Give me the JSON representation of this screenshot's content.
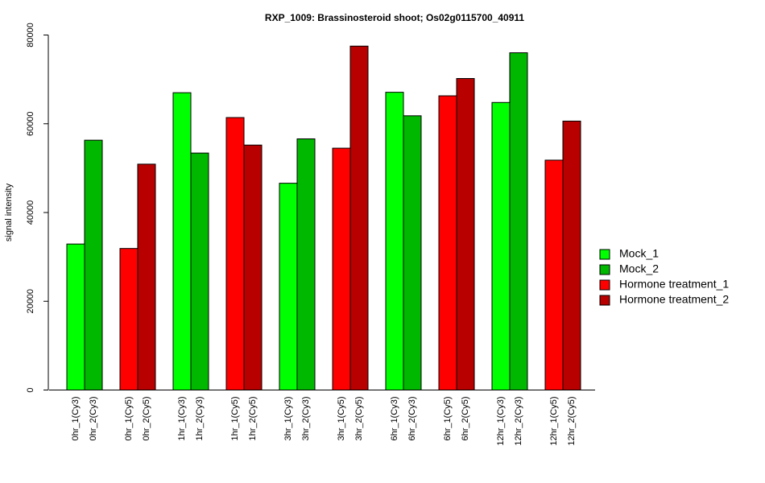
{
  "chart_data": {
    "type": "bar",
    "title": "RXP_1009: Brassinosteroid shoot; Os02g0115700_40911",
    "xlabel": "",
    "ylabel": "signal intensity",
    "ylim": [
      0,
      80000
    ],
    "yticks": [
      0,
      20000,
      40000,
      60000,
      80000
    ],
    "grid": false,
    "legend_position": "right",
    "groups": [
      {
        "bars": [
          {
            "label": "0hr_1(Cy3)",
            "value": 32900,
            "series": 0
          },
          {
            "label": "0hr_2(Cy3)",
            "value": 56300,
            "series": 1
          }
        ]
      },
      {
        "bars": [
          {
            "label": "0hr_1(Cy5)",
            "value": 31900,
            "series": 2
          },
          {
            "label": "0hr_2(Cy5)",
            "value": 50900,
            "series": 3
          }
        ]
      },
      {
        "bars": [
          {
            "label": "1hr_1(Cy3)",
            "value": 67000,
            "series": 0
          },
          {
            "label": "1hr_2(Cy3)",
            "value": 53400,
            "series": 1
          }
        ]
      },
      {
        "bars": [
          {
            "label": "1hr_1(Cy5)",
            "value": 61400,
            "series": 2
          },
          {
            "label": "1hr_2(Cy5)",
            "value": 55200,
            "series": 3
          }
        ]
      },
      {
        "bars": [
          {
            "label": "3hr_1(Cy3)",
            "value": 46600,
            "series": 0
          },
          {
            "label": "3hr_2(Cy3)",
            "value": 56600,
            "series": 1
          }
        ]
      },
      {
        "bars": [
          {
            "label": "3hr_1(Cy5)",
            "value": 54500,
            "series": 2
          },
          {
            "label": "3hr_2(Cy5)",
            "value": 77500,
            "series": 3
          }
        ]
      },
      {
        "bars": [
          {
            "label": "6hr_1(Cy3)",
            "value": 67100,
            "series": 0
          },
          {
            "label": "6hr_2(Cy3)",
            "value": 61800,
            "series": 1
          }
        ]
      },
      {
        "bars": [
          {
            "label": "6hr_1(Cy5)",
            "value": 66300,
            "series": 2
          },
          {
            "label": "6hr_2(Cy5)",
            "value": 70200,
            "series": 3
          }
        ]
      },
      {
        "bars": [
          {
            "label": "12hr_1(Cy3)",
            "value": 64800,
            "series": 0
          },
          {
            "label": "12hr_2(Cy3)",
            "value": 76000,
            "series": 1
          }
        ]
      },
      {
        "bars": [
          {
            "label": "12hr_1(Cy5)",
            "value": 51800,
            "series": 2
          },
          {
            "label": "12hr_2(Cy5)",
            "value": 60600,
            "series": 3
          }
        ]
      }
    ],
    "series": [
      {
        "name": "Mock_1",
        "color": "#00ff00"
      },
      {
        "name": "Mock_2",
        "color": "#00b800"
      },
      {
        "name": "Hormone treatment_1",
        "color": "#ff0000"
      },
      {
        "name": "Hormone treatment_2",
        "color": "#b80000"
      }
    ]
  }
}
